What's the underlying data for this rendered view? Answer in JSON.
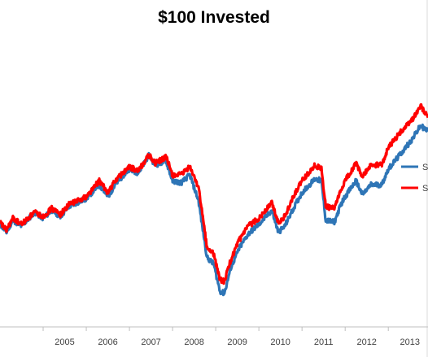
{
  "chart_data": {
    "type": "line",
    "title": "$100 Invested",
    "xlabel": "",
    "ylabel": "",
    "xlim": [
      2004.0,
      2013.92
    ],
    "ylim": [
      40,
      185
    ],
    "x_ticks": [
      "2005",
      "2006",
      "2007",
      "2008",
      "2009",
      "2010",
      "2011",
      "2012",
      "2013"
    ],
    "grid": false,
    "legend": {
      "position": "right",
      "entries_visible": [
        "S",
        "S"
      ]
    },
    "series": [
      {
        "color": "#2e75b6",
        "points": [
          [
            2004.0,
            92
          ],
          [
            2004.15,
            88
          ],
          [
            2004.3,
            94
          ],
          [
            2004.5,
            91
          ],
          [
            2004.8,
            98
          ],
          [
            2005.0,
            95
          ],
          [
            2005.2,
            99
          ],
          [
            2005.4,
            96
          ],
          [
            2005.6,
            101
          ],
          [
            2005.8,
            103
          ],
          [
            2006.0,
            105
          ],
          [
            2006.3,
            112
          ],
          [
            2006.5,
            106
          ],
          [
            2006.7,
            113
          ],
          [
            2007.0,
            120
          ],
          [
            2007.2,
            118
          ],
          [
            2007.45,
            127
          ],
          [
            2007.6,
            122
          ],
          [
            2007.85,
            124
          ],
          [
            2008.0,
            114
          ],
          [
            2008.2,
            113
          ],
          [
            2008.4,
            117
          ],
          [
            2008.6,
            104
          ],
          [
            2008.8,
            75
          ],
          [
            2008.95,
            72
          ],
          [
            2009.1,
            58
          ],
          [
            2009.2,
            57
          ],
          [
            2009.35,
            70
          ],
          [
            2009.55,
            80
          ],
          [
            2009.75,
            87
          ],
          [
            2010.0,
            92
          ],
          [
            2010.3,
            99
          ],
          [
            2010.45,
            88
          ],
          [
            2010.6,
            91
          ],
          [
            2010.8,
            100
          ],
          [
            2011.0,
            108
          ],
          [
            2011.3,
            115
          ],
          [
            2011.45,
            114
          ],
          [
            2011.55,
            94
          ],
          [
            2011.75,
            93
          ],
          [
            2011.9,
            102
          ],
          [
            2012.0,
            106
          ],
          [
            2012.25,
            114
          ],
          [
            2012.4,
            107
          ],
          [
            2012.6,
            112
          ],
          [
            2012.85,
            112
          ],
          [
            2013.0,
            120
          ],
          [
            2013.3,
            128
          ],
          [
            2013.55,
            135
          ],
          [
            2013.75,
            142
          ],
          [
            2013.92,
            139
          ]
        ]
      },
      {
        "color": "#ff0000",
        "points": [
          [
            2004.0,
            93
          ],
          [
            2004.15,
            89
          ],
          [
            2004.3,
            95
          ],
          [
            2004.5,
            92
          ],
          [
            2004.8,
            98
          ],
          [
            2005.0,
            96
          ],
          [
            2005.2,
            100
          ],
          [
            2005.4,
            97
          ],
          [
            2005.6,
            102
          ],
          [
            2005.8,
            104
          ],
          [
            2006.0,
            106
          ],
          [
            2006.3,
            114
          ],
          [
            2006.5,
            108
          ],
          [
            2006.7,
            115
          ],
          [
            2007.0,
            121
          ],
          [
            2007.2,
            119
          ],
          [
            2007.45,
            127
          ],
          [
            2007.6,
            123
          ],
          [
            2007.85,
            126
          ],
          [
            2008.0,
            117
          ],
          [
            2008.2,
            117
          ],
          [
            2008.4,
            121
          ],
          [
            2008.6,
            111
          ],
          [
            2008.8,
            80
          ],
          [
            2008.95,
            77
          ],
          [
            2009.1,
            64
          ],
          [
            2009.2,
            63
          ],
          [
            2009.35,
            74
          ],
          [
            2009.55,
            84
          ],
          [
            2009.75,
            91
          ],
          [
            2010.0,
            95
          ],
          [
            2010.3,
            103
          ],
          [
            2010.45,
            93
          ],
          [
            2010.6,
            96
          ],
          [
            2010.8,
            106
          ],
          [
            2011.0,
            114
          ],
          [
            2011.3,
            122
          ],
          [
            2011.45,
            120
          ],
          [
            2011.55,
            101
          ],
          [
            2011.75,
            100
          ],
          [
            2011.9,
            109
          ],
          [
            2012.0,
            114
          ],
          [
            2012.25,
            123
          ],
          [
            2012.4,
            116
          ],
          [
            2012.6,
            122
          ],
          [
            2012.85,
            122
          ],
          [
            2013.0,
            131
          ],
          [
            2013.3,
            139
          ],
          [
            2013.55,
            145
          ],
          [
            2013.75,
            152
          ],
          [
            2013.92,
            146
          ]
        ]
      }
    ]
  }
}
